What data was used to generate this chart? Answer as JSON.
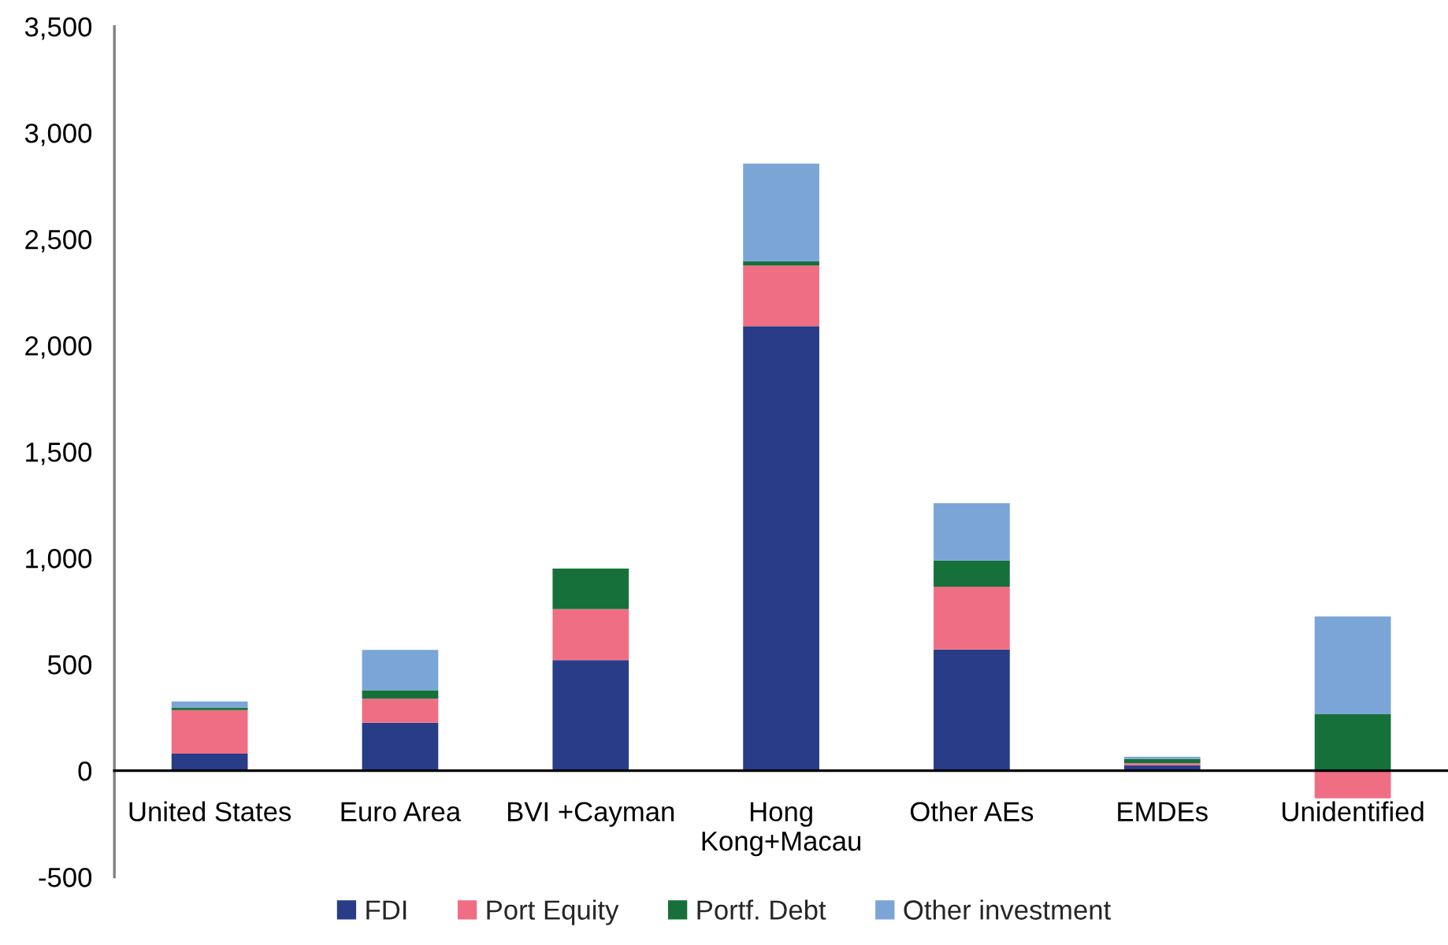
{
  "chart_data": {
    "type": "bar",
    "stacked": true,
    "categories": [
      "United States",
      "Euro Area",
      "BVI +Cayman",
      "Hong Kong+Macau",
      "Other AEs",
      "EMDEs",
      "Unidentified"
    ],
    "series": [
      {
        "name": "FDI",
        "color": "#283c87",
        "values": [
          80,
          225,
          520,
          2090,
          570,
          25,
          0
        ]
      },
      {
        "name": "Port Equity",
        "color": "#f06e84",
        "values": [
          205,
          113,
          240,
          285,
          295,
          10,
          -130
        ]
      },
      {
        "name": "Portf. Debt",
        "color": "#16703a",
        "values": [
          12,
          40,
          190,
          20,
          123,
          20,
          265
        ]
      },
      {
        "name": "Other investment",
        "color": "#7ba5d7",
        "values": [
          28,
          190,
          0,
          460,
          270,
          10,
          460
        ]
      }
    ],
    "ylim": [
      -500,
      3500
    ],
    "yticks": [
      -500,
      0,
      500,
      {
        "value": 1000,
        "label": "1,000"
      },
      {
        "value": 1500,
        "label": "1,500"
      },
      {
        "value": 2000,
        "label": "2,000"
      },
      {
        "value": 2500,
        "label": "2,500"
      },
      {
        "value": 3000,
        "label": "3,000"
      },
      {
        "value": 3500,
        "label": "3,500"
      }
    ],
    "legend": "bottom"
  }
}
